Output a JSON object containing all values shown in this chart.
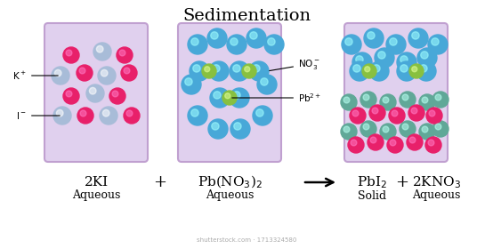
{
  "title": "Sedimentation",
  "background_color": "#ffffff",
  "beaker_fill": "#e0d0ee",
  "beaker_stroke": "#c0a0d0",
  "color_K_blue": "#a8bcd8",
  "color_I_pink": "#e8206a",
  "color_NO3_blue": "#48a8d8",
  "color_Pb_green": "#88c040",
  "color_teal": "#60a898",
  "label_K": "K$^+$",
  "label_I": "I$^-$",
  "label_NO3": "NO$_3^-$",
  "label_Pb": "Pb$^{2+}$",
  "watermark": "shutterstock.com · 1713324580"
}
